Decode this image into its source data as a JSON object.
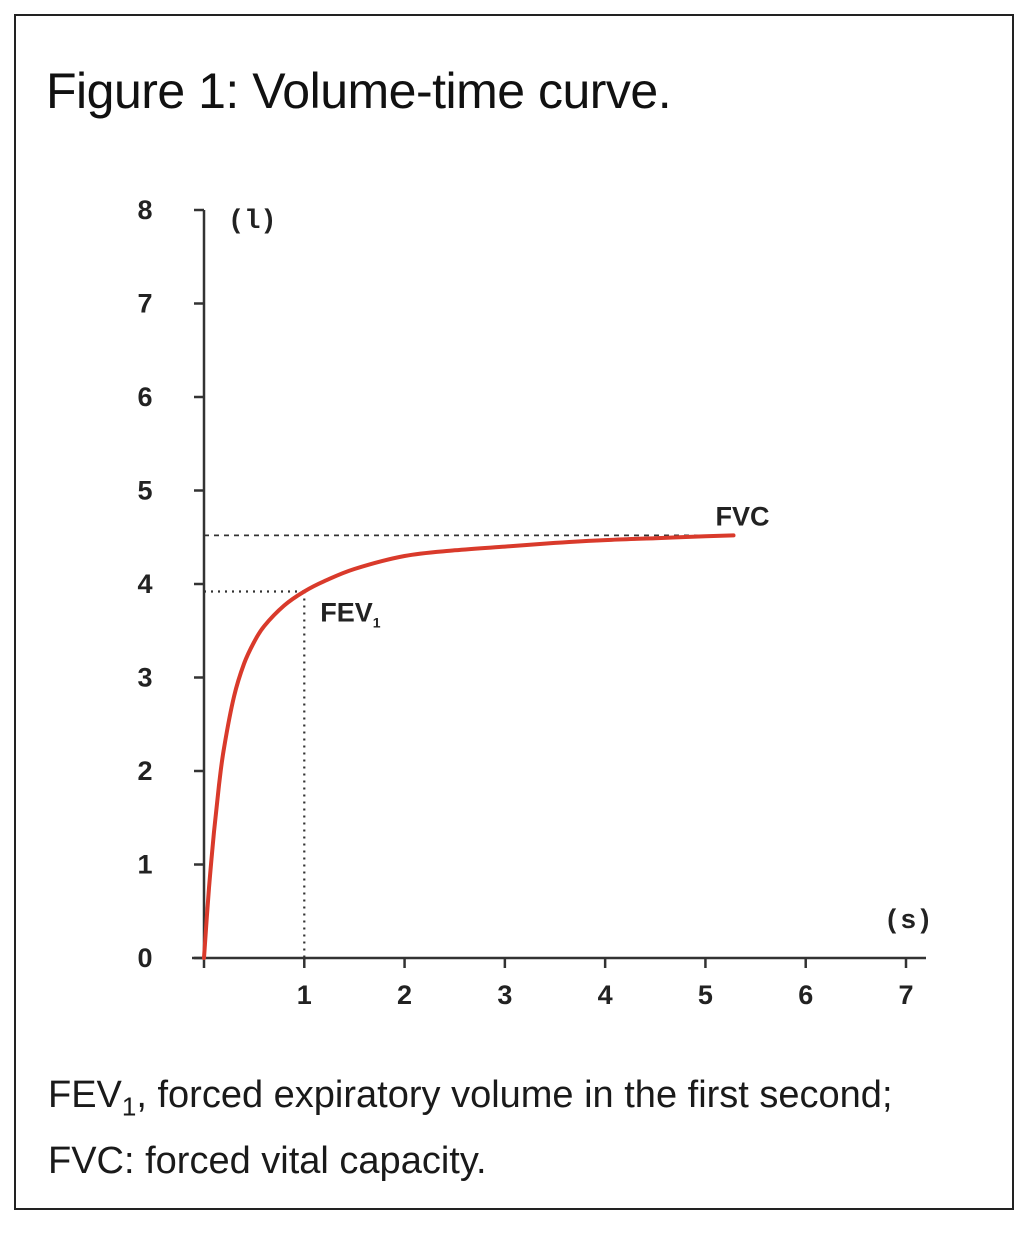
{
  "figure": {
    "title": "Figure 1: Volume-time curve.",
    "caption_line1_prefix": "FEV",
    "caption_line1_sub": "1",
    "caption_line1_rest": ", forced expiratory volume in the first second;",
    "caption_line2": "FVC: forced vital capacity."
  },
  "chart_data": {
    "type": "line",
    "title": "Figure 1: Volume-time curve.",
    "xlabel": "(s)",
    "ylabel": "(l)",
    "xlim": [
      0,
      7
    ],
    "ylim": [
      0,
      8
    ],
    "x_ticks": [
      "1",
      "2",
      "3",
      "4",
      "5",
      "6",
      "7"
    ],
    "y_ticks": [
      "0",
      "1",
      "2",
      "3",
      "4",
      "5",
      "6",
      "7",
      "8"
    ],
    "grid": false,
    "series": [
      {
        "color": "#d93a2b",
        "x": [
          0,
          0.05,
          0.1,
          0.15,
          0.2,
          0.3,
          0.4,
          0.5,
          0.6,
          0.8,
          1.0,
          1.2,
          1.5,
          2.0,
          2.5,
          3.0,
          3.5,
          4.0,
          4.5,
          5.0,
          5.28
        ],
        "y": [
          0,
          0.75,
          1.35,
          1.85,
          2.25,
          2.8,
          3.15,
          3.38,
          3.55,
          3.77,
          3.92,
          4.03,
          4.16,
          4.3,
          4.36,
          4.4,
          4.44,
          4.47,
          4.49,
          4.51,
          4.52
        ]
      }
    ],
    "annotations": [
      {
        "label": "FEV",
        "subscript": "1",
        "x": 1,
        "y": 3.92
      },
      {
        "label": "FVC",
        "x": 5.28,
        "y": 4.52
      }
    ],
    "reference_lines_color": "#333333"
  }
}
